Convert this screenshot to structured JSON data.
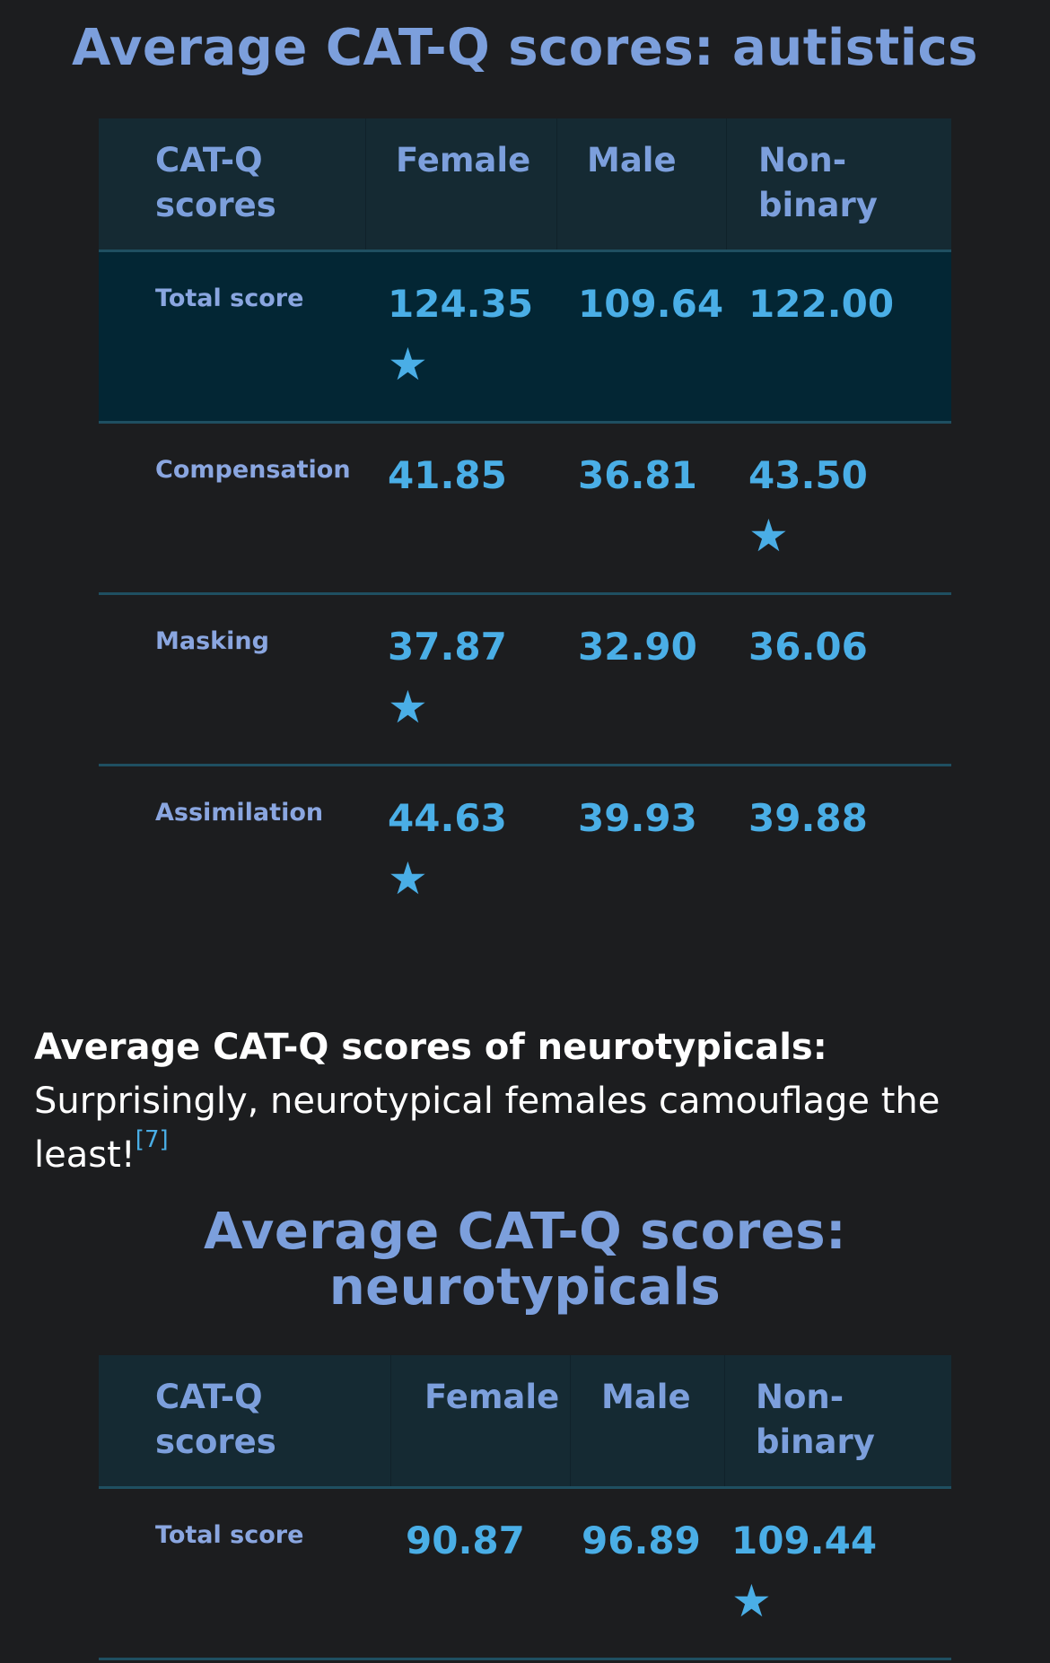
{
  "table1": {
    "title": "Average CAT-Q scores: autistics",
    "headers": [
      "CAT-Q scores",
      "Female",
      "Male",
      "Non-binary"
    ],
    "rows": [
      {
        "label": "Total score",
        "female": "124.35",
        "male": "109.64",
        "nonbinary": "122.00",
        "star": "female"
      },
      {
        "label": "Compensation",
        "female": "41.85",
        "male": "36.81",
        "nonbinary": "43.50",
        "star": "nonbinary"
      },
      {
        "label": "Masking",
        "female": "37.87",
        "male": "32.90",
        "nonbinary": "36.06",
        "star": "female"
      },
      {
        "label": "Assimilation",
        "female": "44.63",
        "male": "39.93",
        "nonbinary": "39.88",
        "star": "female"
      }
    ]
  },
  "paragraph": {
    "bold": "Average CAT-Q scores of neurotypicals:",
    "text": " Surprisingly, neurotypical females camouflage the least!",
    "ref": "[7]"
  },
  "table2": {
    "title": "Average CAT-Q scores: neurotypicals",
    "headers": [
      "CAT-Q scores",
      "Female",
      "Male",
      "Non-binary"
    ],
    "rows": [
      {
        "label": "Total score",
        "female": "90.87",
        "male": "96.89",
        "nonbinary": "109.44",
        "star": "nonbinary"
      }
    ]
  },
  "star_glyph": "★",
  "colors": {
    "accent": "#4aaee6",
    "heading": "#7c9fdc",
    "background": "#1c1d1f"
  }
}
